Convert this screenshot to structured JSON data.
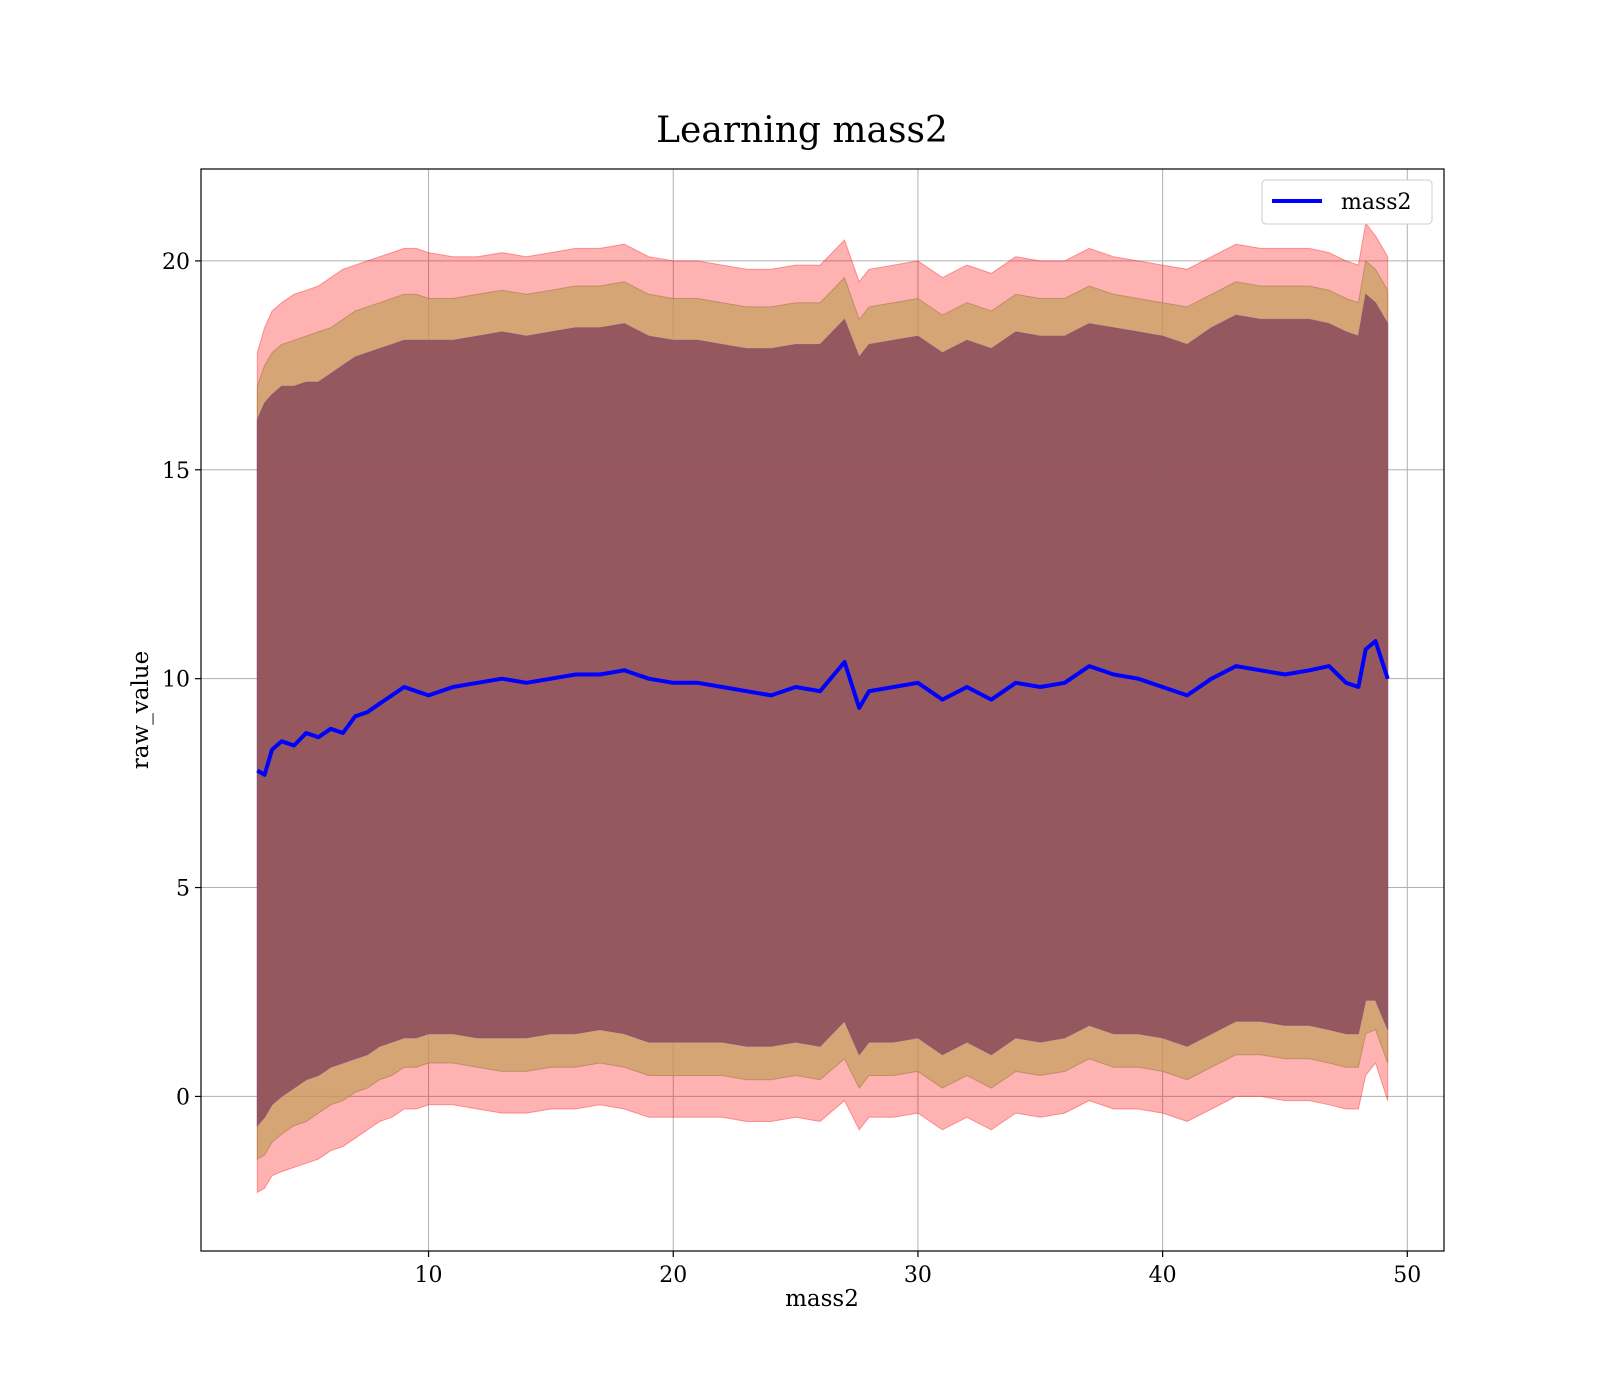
{
  "chart_data": {
    "type": "line",
    "title": "Learning mass2",
    "xlabel": "mass2",
    "ylabel": "raw_value",
    "xlim": [
      0.7,
      51.5
    ],
    "ylim": [
      -3.7,
      22.2
    ],
    "xticks": [
      10,
      20,
      30,
      40,
      50
    ],
    "yticks": [
      0,
      5,
      10,
      15,
      20
    ],
    "grid": true,
    "legend_position": "top-right",
    "colors": {
      "line": "#0000ff",
      "band": "#ff0000",
      "core": "#8b4a5c",
      "gold_band": "#c8a060",
      "purple_band": "#7a4a80",
      "grid": "#b0b0b0"
    },
    "series": [
      {
        "name": "mass2",
        "x": [
          3.0,
          3.3,
          3.6,
          4.0,
          4.5,
          5.0,
          5.5,
          6.0,
          6.5,
          7.0,
          7.5,
          8.0,
          8.5,
          9.0,
          9.5,
          10.0,
          11.0,
          12.0,
          13.0,
          14.0,
          15.0,
          16.0,
          17.0,
          18.0,
          19.0,
          20.0,
          21.0,
          22.0,
          23.0,
          24.0,
          25.0,
          26.0,
          27.0,
          27.6,
          28.0,
          29.0,
          30.0,
          31.0,
          32.0,
          33.0,
          34.0,
          35.0,
          36.0,
          37.0,
          38.0,
          39.0,
          40.0,
          41.0,
          42.0,
          43.0,
          44.0,
          45.0,
          46.0,
          46.8,
          47.5,
          48.0,
          48.3,
          48.7,
          49.2
        ],
        "y": [
          7.8,
          7.7,
          8.3,
          8.5,
          8.4,
          8.7,
          8.6,
          8.8,
          8.7,
          9.1,
          9.2,
          9.4,
          9.6,
          9.8,
          9.7,
          9.6,
          9.8,
          9.9,
          10.0,
          9.9,
          10.0,
          10.1,
          10.1,
          10.2,
          10.0,
          9.9,
          9.9,
          9.8,
          9.7,
          9.6,
          9.8,
          9.7,
          10.4,
          9.3,
          9.7,
          9.8,
          9.9,
          9.5,
          9.8,
          9.5,
          9.9,
          9.8,
          9.9,
          10.3,
          10.1,
          10.0,
          9.8,
          9.6,
          10.0,
          10.3,
          10.2,
          10.1,
          10.2,
          10.3,
          9.9,
          9.8,
          10.7,
          10.9,
          10.0
        ],
        "band_outer_upper": [
          17.8,
          18.4,
          18.8,
          19.0,
          19.2,
          19.3,
          19.4,
          19.6,
          19.8,
          19.9,
          20.0,
          20.1,
          20.2,
          20.3,
          20.3,
          20.2,
          20.1,
          20.1,
          20.2,
          20.1,
          20.2,
          20.3,
          20.3,
          20.4,
          20.1,
          20.0,
          20.0,
          19.9,
          19.8,
          19.8,
          19.9,
          19.9,
          20.5,
          19.5,
          19.8,
          19.9,
          20.0,
          19.6,
          19.9,
          19.7,
          20.1,
          20.0,
          20.0,
          20.3,
          20.1,
          20.0,
          19.9,
          19.8,
          20.1,
          20.4,
          20.3,
          20.3,
          20.3,
          20.2,
          20.0,
          19.9,
          20.9,
          20.6,
          20.1
        ],
        "band_outer_lower": [
          -2.3,
          -2.2,
          -1.9,
          -1.8,
          -1.7,
          -1.6,
          -1.5,
          -1.3,
          -1.2,
          -1.0,
          -0.8,
          -0.6,
          -0.5,
          -0.3,
          -0.3,
          -0.2,
          -0.2,
          -0.3,
          -0.4,
          -0.4,
          -0.3,
          -0.3,
          -0.2,
          -0.3,
          -0.5,
          -0.5,
          -0.5,
          -0.5,
          -0.6,
          -0.6,
          -0.5,
          -0.6,
          -0.1,
          -0.8,
          -0.5,
          -0.5,
          -0.4,
          -0.8,
          -0.5,
          -0.8,
          -0.4,
          -0.5,
          -0.4,
          -0.1,
          -0.3,
          -0.3,
          -0.4,
          -0.6,
          -0.3,
          0.0,
          0.0,
          -0.1,
          -0.1,
          -0.2,
          -0.3,
          -0.3,
          0.5,
          0.8,
          -0.1
        ],
        "band_mid_upper": [
          17.0,
          17.5,
          17.8,
          18.0,
          18.1,
          18.2,
          18.3,
          18.4,
          18.6,
          18.8,
          18.9,
          19.0,
          19.1,
          19.2,
          19.2,
          19.1,
          19.1,
          19.2,
          19.3,
          19.2,
          19.3,
          19.4,
          19.4,
          19.5,
          19.2,
          19.1,
          19.1,
          19.0,
          18.9,
          18.9,
          19.0,
          19.0,
          19.6,
          18.6,
          18.9,
          19.0,
          19.1,
          18.7,
          19.0,
          18.8,
          19.2,
          19.1,
          19.1,
          19.4,
          19.2,
          19.1,
          19.0,
          18.9,
          19.2,
          19.5,
          19.4,
          19.4,
          19.4,
          19.3,
          19.1,
          19.0,
          20.0,
          19.8,
          19.3
        ],
        "band_mid_lower": [
          -1.5,
          -1.4,
          -1.1,
          -0.9,
          -0.7,
          -0.6,
          -0.4,
          -0.2,
          -0.1,
          0.1,
          0.2,
          0.4,
          0.5,
          0.7,
          0.7,
          0.8,
          0.8,
          0.7,
          0.6,
          0.6,
          0.7,
          0.7,
          0.8,
          0.7,
          0.5,
          0.5,
          0.5,
          0.5,
          0.4,
          0.4,
          0.5,
          0.4,
          0.9,
          0.2,
          0.5,
          0.5,
          0.6,
          0.2,
          0.5,
          0.2,
          0.6,
          0.5,
          0.6,
          0.9,
          0.7,
          0.7,
          0.6,
          0.4,
          0.7,
          1.0,
          1.0,
          0.9,
          0.9,
          0.8,
          0.7,
          0.7,
          1.5,
          1.6,
          0.8
        ],
        "band_inner_upper": [
          16.2,
          16.6,
          16.8,
          17.0,
          17.0,
          17.1,
          17.1,
          17.3,
          17.5,
          17.7,
          17.8,
          17.9,
          18.0,
          18.1,
          18.1,
          18.1,
          18.1,
          18.2,
          18.3,
          18.2,
          18.3,
          18.4,
          18.4,
          18.5,
          18.2,
          18.1,
          18.1,
          18.0,
          17.9,
          17.9,
          18.0,
          18.0,
          18.6,
          17.7,
          18.0,
          18.1,
          18.2,
          17.8,
          18.1,
          17.9,
          18.3,
          18.2,
          18.2,
          18.5,
          18.4,
          18.3,
          18.2,
          18.0,
          18.4,
          18.7,
          18.6,
          18.6,
          18.6,
          18.5,
          18.3,
          18.2,
          19.2,
          19.0,
          18.5
        ],
        "band_inner_lower": [
          -0.7,
          -0.5,
          -0.2,
          0.0,
          0.2,
          0.4,
          0.5,
          0.7,
          0.8,
          0.9,
          1.0,
          1.2,
          1.3,
          1.4,
          1.4,
          1.5,
          1.5,
          1.4,
          1.4,
          1.4,
          1.5,
          1.5,
          1.6,
          1.5,
          1.3,
          1.3,
          1.3,
          1.3,
          1.2,
          1.2,
          1.3,
          1.2,
          1.8,
          1.0,
          1.3,
          1.3,
          1.4,
          1.0,
          1.3,
          1.0,
          1.4,
          1.3,
          1.4,
          1.7,
          1.5,
          1.5,
          1.4,
          1.2,
          1.5,
          1.8,
          1.8,
          1.7,
          1.7,
          1.6,
          1.5,
          1.5,
          2.3,
          2.3,
          1.6
        ]
      }
    ]
  }
}
